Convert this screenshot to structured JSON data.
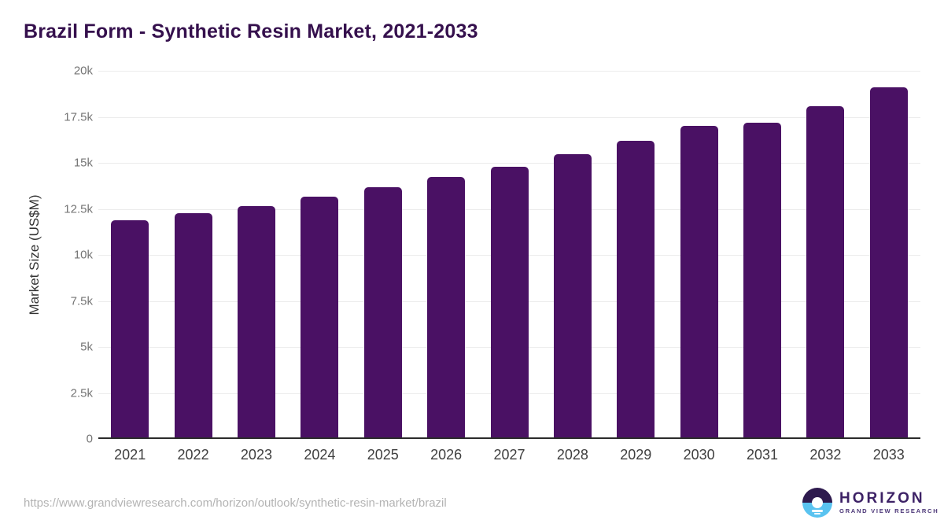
{
  "title": "Brazil Form - Synthetic Resin Market, 2021-2033",
  "chart_data": {
    "type": "bar",
    "title": "Brazil Form - Synthetic Resin Market, 2021-2033",
    "categories": [
      "2021",
      "2022",
      "2023",
      "2024",
      "2025",
      "2026",
      "2027",
      "2028",
      "2029",
      "2030",
      "2031",
      "2032",
      "2033"
    ],
    "values": [
      11870,
      12260,
      12650,
      13150,
      13660,
      14220,
      14790,
      15460,
      16190,
      16990,
      17180,
      18080,
      19100
    ],
    "xlabel": "",
    "ylabel": "Market Size (US$M)",
    "ylim": [
      0,
      20000
    ],
    "yticks": [
      {
        "v": 20000,
        "label": "20k"
      },
      {
        "v": 17500,
        "label": "17.5k"
      },
      {
        "v": 15000,
        "label": "15k"
      },
      {
        "v": 12500,
        "label": "12.5k"
      },
      {
        "v": 10000,
        "label": "10k"
      },
      {
        "v": 7500,
        "label": "7.5k"
      },
      {
        "v": 5000,
        "label": "5k"
      },
      {
        "v": 2500,
        "label": "2.5k"
      },
      {
        "v": 0,
        "label": "0"
      }
    ],
    "grid": "horizontal",
    "legend_position": "none",
    "bar_color": "#4a1164"
  },
  "colors": {
    "title": "#35104d",
    "bar": "#4a1164",
    "gridline": "#ececec",
    "axis_line": "#2b2b2b",
    "y_tick": "#757575",
    "x_tick": "#3f3f3f",
    "url_text": "#b3b3b3",
    "logo_purple": "#3d2266",
    "logo_dark_half": "#2e1a4e",
    "logo_blue_half": "#5ac3f0"
  },
  "footer": {
    "source_url": "https://www.grandviewresearch.com/horizon/outlook/synthetic-resin-market/brazil",
    "logo_title": "HORIZON",
    "logo_subtitle": "GRAND VIEW RESEARCH"
  }
}
